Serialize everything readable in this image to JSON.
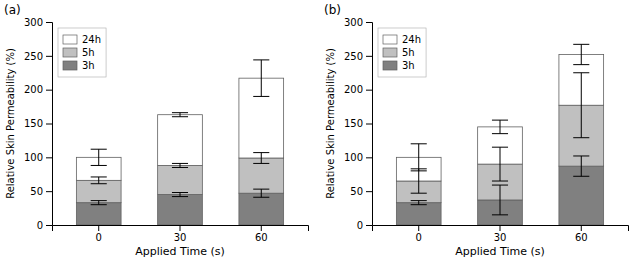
{
  "chart_data": [
    {
      "type": "bar",
      "stacked": true,
      "title": "(a)",
      "categories": [
        "0",
        "30",
        "60"
      ],
      "series": [
        {
          "name": "3h",
          "color": "#808080",
          "values": [
            33,
            45,
            47
          ],
          "errors": [
            3,
            3,
            6
          ]
        },
        {
          "name": "5h",
          "color": "#c0c0c0",
          "values": [
            33,
            43,
            52
          ],
          "errors": [
            5,
            3,
            8
          ]
        },
        {
          "name": "24h",
          "color": "#ffffff",
          "values": [
            34,
            75,
            118
          ],
          "errors": [
            12,
            3,
            27
          ]
        }
      ],
      "xlabel": "Applied Time (s)",
      "ylabel": "Relative Skin Permeability (%)",
      "ylim": [
        0,
        300
      ],
      "yticks": [
        0,
        50,
        100,
        150,
        200,
        250,
        300
      ],
      "legend": "upper left"
    },
    {
      "type": "bar",
      "stacked": true,
      "title": "(b)",
      "categories": [
        "0",
        "30",
        "60"
      ],
      "series": [
        {
          "name": "3h",
          "color": "#808080",
          "values": [
            33,
            37,
            87
          ],
          "errors": [
            3,
            22,
            15
          ]
        },
        {
          "name": "5h",
          "color": "#c0c0c0",
          "values": [
            32,
            53,
            90
          ],
          "errors": [
            18,
            25,
            48
          ]
        },
        {
          "name": "24h",
          "color": "#ffffff",
          "values": [
            35,
            55,
            75
          ],
          "errors": [
            20,
            10,
            15
          ]
        }
      ],
      "xlabel": "Applied Time (s)",
      "ylabel": "Relative Skin Permeability (%)",
      "ylim": [
        0,
        300
      ],
      "yticks": [
        0,
        50,
        100,
        150,
        200,
        250,
        300
      ],
      "legend": "upper left"
    }
  ]
}
